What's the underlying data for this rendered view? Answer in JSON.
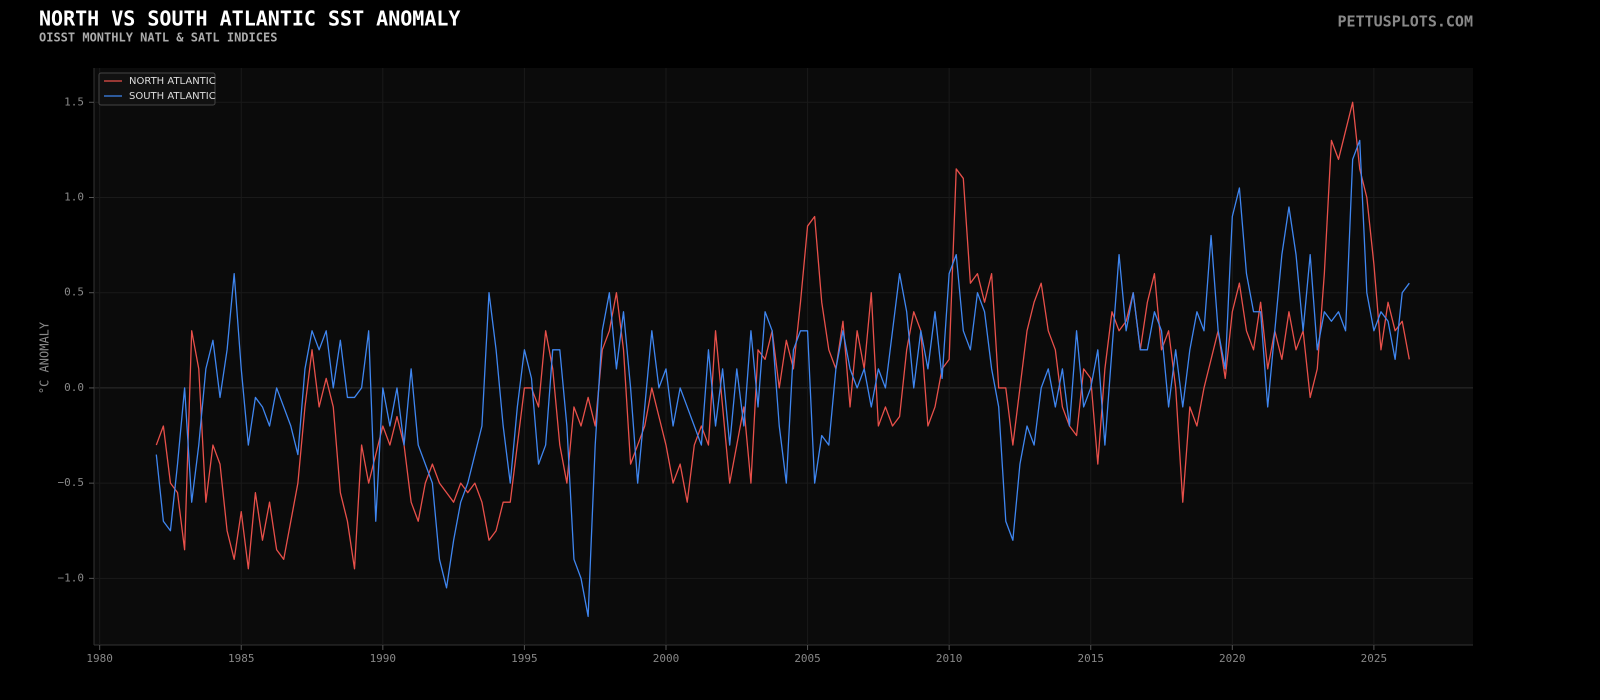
{
  "chart_data": {
    "type": "line",
    "title": "NORTH VS SOUTH ATLANTIC SST ANOMALY",
    "subtitle": "OISST MONTHLY NATL & SATL INDICES",
    "watermark": "PETTUSPLOTS.COM",
    "ylabel": "°C ANOMALY",
    "legend": "upper left",
    "grid": true,
    "xlim": [
      1979.8,
      2028.5
    ],
    "ylim": [
      -1.35,
      1.68
    ],
    "xticks": [
      1980,
      1985,
      1990,
      1995,
      2000,
      2005,
      2010,
      2015,
      2020,
      2025
    ],
    "yticks": [
      {
        "value": -1,
        "label": "−1.0"
      },
      {
        "value": -0.5,
        "label": "−0.5"
      },
      {
        "value": 0,
        "label": "0.0"
      },
      0.5,
      {
        "value": 1,
        "label": "1.0"
      },
      1.5
    ],
    "x": [
      1982,
      1982.25,
      1982.5,
      1982.75,
      1983,
      1983.25,
      1983.5,
      1983.75,
      1984,
      1984.25,
      1984.5,
      1984.75,
      1985,
      1985.25,
      1985.5,
      1985.75,
      1986,
      1986.25,
      1986.5,
      1986.75,
      1987,
      1987.25,
      1987.5,
      1987.75,
      1988,
      1988.25,
      1988.5,
      1988.75,
      1989,
      1989.25,
      1989.5,
      1989.75,
      1990,
      1990.25,
      1990.5,
      1990.75,
      1991,
      1991.25,
      1991.5,
      1991.75,
      1992,
      1992.25,
      1992.5,
      1992.75,
      1993,
      1993.25,
      1993.5,
      1993.75,
      1994,
      1994.25,
      1994.5,
      1994.75,
      1995,
      1995.25,
      1995.5,
      1995.75,
      1996,
      1996.25,
      1996.5,
      1996.75,
      1997,
      1997.25,
      1997.5,
      1997.75,
      1998,
      1998.25,
      1998.5,
      1998.75,
      1999,
      1999.25,
      1999.5,
      1999.75,
      2000,
      2000.25,
      2000.5,
      2000.75,
      2001,
      2001.25,
      2001.5,
      2001.75,
      2002,
      2002.25,
      2002.5,
      2002.75,
      2003,
      2003.25,
      2003.5,
      2003.75,
      2004,
      2004.25,
      2004.5,
      2004.75,
      2005,
      2005.25,
      2005.5,
      2005.75,
      2006,
      2006.25,
      2006.5,
      2006.75,
      2007,
      2007.25,
      2007.5,
      2007.75,
      2008,
      2008.25,
      2008.5,
      2008.75,
      2009,
      2009.25,
      2009.5,
      2009.75,
      2010,
      2010.25,
      2010.5,
      2010.75,
      2011,
      2011.25,
      2011.5,
      2011.75,
      2012,
      2012.25,
      2012.5,
      2012.75,
      2013,
      2013.25,
      2013.5,
      2013.75,
      2014,
      2014.25,
      2014.5,
      2014.75,
      2015,
      2015.25,
      2015.5,
      2015.75,
      2016,
      2016.25,
      2016.5,
      2016.75,
      2017,
      2017.25,
      2017.5,
      2017.75,
      2018,
      2018.25,
      2018.5,
      2018.75,
      2019,
      2019.25,
      2019.5,
      2019.75,
      2020,
      2020.25,
      2020.5,
      2020.75,
      2021,
      2021.25,
      2021.5,
      2021.75,
      2022,
      2022.25,
      2022.5,
      2022.75,
      2023,
      2023.25,
      2023.5,
      2023.75,
      2024,
      2024.25,
      2024.5,
      2024.75,
      2025,
      2025.25,
      2025.5,
      2025.75,
      2026,
      2026.25
    ],
    "series": [
      {
        "name": "NORTH ATLANTIC",
        "color": "#e8504a",
        "values": [
          -0.3,
          -0.2,
          -0.5,
          -0.55,
          -0.85,
          0.3,
          0.1,
          -0.6,
          -0.3,
          -0.4,
          -0.75,
          -0.9,
          -0.65,
          -0.95,
          -0.55,
          -0.8,
          -0.6,
          -0.85,
          -0.9,
          -0.7,
          -0.5,
          -0.1,
          0.2,
          -0.1,
          0.05,
          -0.1,
          -0.55,
          -0.7,
          -0.95,
          -0.3,
          -0.5,
          -0.35,
          -0.2,
          -0.3,
          -0.15,
          -0.3,
          -0.6,
          -0.7,
          -0.5,
          -0.4,
          -0.5,
          -0.55,
          -0.6,
          -0.5,
          -0.55,
          -0.5,
          -0.6,
          -0.8,
          -0.75,
          -0.6,
          -0.6,
          -0.3,
          0.0,
          0.0,
          -0.1,
          0.3,
          0.1,
          -0.3,
          -0.5,
          -0.1,
          -0.2,
          -0.05,
          -0.2,
          0.2,
          0.3,
          0.5,
          0.2,
          -0.4,
          -0.3,
          -0.2,
          0.0,
          -0.15,
          -0.3,
          -0.5,
          -0.4,
          -0.6,
          -0.3,
          -0.2,
          -0.3,
          0.3,
          -0.1,
          -0.5,
          -0.3,
          -0.1,
          -0.5,
          0.2,
          0.15,
          0.3,
          0.0,
          0.25,
          0.1,
          0.45,
          0.85,
          0.9,
          0.45,
          0.2,
          0.1,
          0.35,
          -0.1,
          0.3,
          0.1,
          0.5,
          -0.2,
          -0.1,
          -0.2,
          -0.15,
          0.2,
          0.4,
          0.3,
          -0.2,
          -0.1,
          0.1,
          0.15,
          1.15,
          1.1,
          0.55,
          0.6,
          0.45,
          0.6,
          0.0,
          0.0,
          -0.3,
          0.0,
          0.3,
          0.45,
          0.55,
          0.3,
          0.2,
          -0.1,
          -0.2,
          -0.25,
          0.1,
          0.05,
          -0.4,
          0.1,
          0.4,
          0.3,
          0.35,
          0.5,
          0.2,
          0.45,
          0.6,
          0.2,
          0.3,
          0.0,
          -0.6,
          -0.1,
          -0.2,
          0.0,
          0.15,
          0.3,
          0.05,
          0.4,
          0.55,
          0.3,
          0.2,
          0.45,
          0.1,
          0.3,
          0.15,
          0.4,
          0.2,
          0.3,
          -0.05,
          0.1,
          0.6,
          1.3,
          1.2,
          1.35,
          1.5,
          1.15,
          1.0,
          0.65,
          0.2,
          0.45,
          0.3,
          0.35,
          0.15
        ]
      },
      {
        "name": "SOUTH ATLANTIC",
        "color": "#3f86f0",
        "values": [
          -0.35,
          -0.7,
          -0.75,
          -0.4,
          0.0,
          -0.6,
          -0.3,
          0.1,
          0.25,
          -0.05,
          0.2,
          0.6,
          0.1,
          -0.3,
          -0.05,
          -0.1,
          -0.2,
          0.0,
          -0.1,
          -0.2,
          -0.35,
          0.1,
          0.3,
          0.2,
          0.3,
          0.0,
          0.25,
          -0.05,
          -0.05,
          0.0,
          0.3,
          -0.7,
          0.0,
          -0.2,
          0.0,
          -0.3,
          0.1,
          -0.3,
          -0.4,
          -0.5,
          -0.9,
          -1.05,
          -0.8,
          -0.6,
          -0.5,
          -0.35,
          -0.2,
          0.5,
          0.2,
          -0.2,
          -0.5,
          -0.1,
          0.2,
          0.05,
          -0.4,
          -0.3,
          0.2,
          0.2,
          -0.2,
          -0.9,
          -1.0,
          -1.2,
          -0.3,
          0.3,
          0.5,
          0.1,
          0.4,
          0.0,
          -0.5,
          -0.1,
          0.3,
          0.0,
          0.1,
          -0.2,
          0.0,
          -0.1,
          -0.2,
          -0.3,
          0.2,
          -0.2,
          0.1,
          -0.3,
          0.1,
          -0.2,
          0.3,
          -0.1,
          0.4,
          0.3,
          -0.2,
          -0.5,
          0.2,
          0.3,
          0.3,
          -0.5,
          -0.25,
          -0.3,
          0.1,
          0.3,
          0.1,
          0.0,
          0.1,
          -0.1,
          0.1,
          0.0,
          0.3,
          0.6,
          0.4,
          0.0,
          0.3,
          0.1,
          0.4,
          0.05,
          0.6,
          0.7,
          0.3,
          0.2,
          0.5,
          0.4,
          0.1,
          -0.1,
          -0.7,
          -0.8,
          -0.4,
          -0.2,
          -0.3,
          0.0,
          0.1,
          -0.1,
          0.1,
          -0.2,
          0.3,
          -0.1,
          0.0,
          0.2,
          -0.3,
          0.2,
          0.7,
          0.3,
          0.5,
          0.2,
          0.2,
          0.4,
          0.3,
          -0.1,
          0.2,
          -0.1,
          0.2,
          0.4,
          0.3,
          0.8,
          0.3,
          0.1,
          0.9,
          1.05,
          0.6,
          0.4,
          0.4,
          -0.1,
          0.3,
          0.7,
          0.95,
          0.7,
          0.3,
          0.7,
          0.2,
          0.4,
          0.35,
          0.4,
          0.3,
          1.2,
          1.3,
          0.5,
          0.3,
          0.4,
          0.35,
          0.15,
          0.5,
          0.55
        ]
      }
    ]
  }
}
